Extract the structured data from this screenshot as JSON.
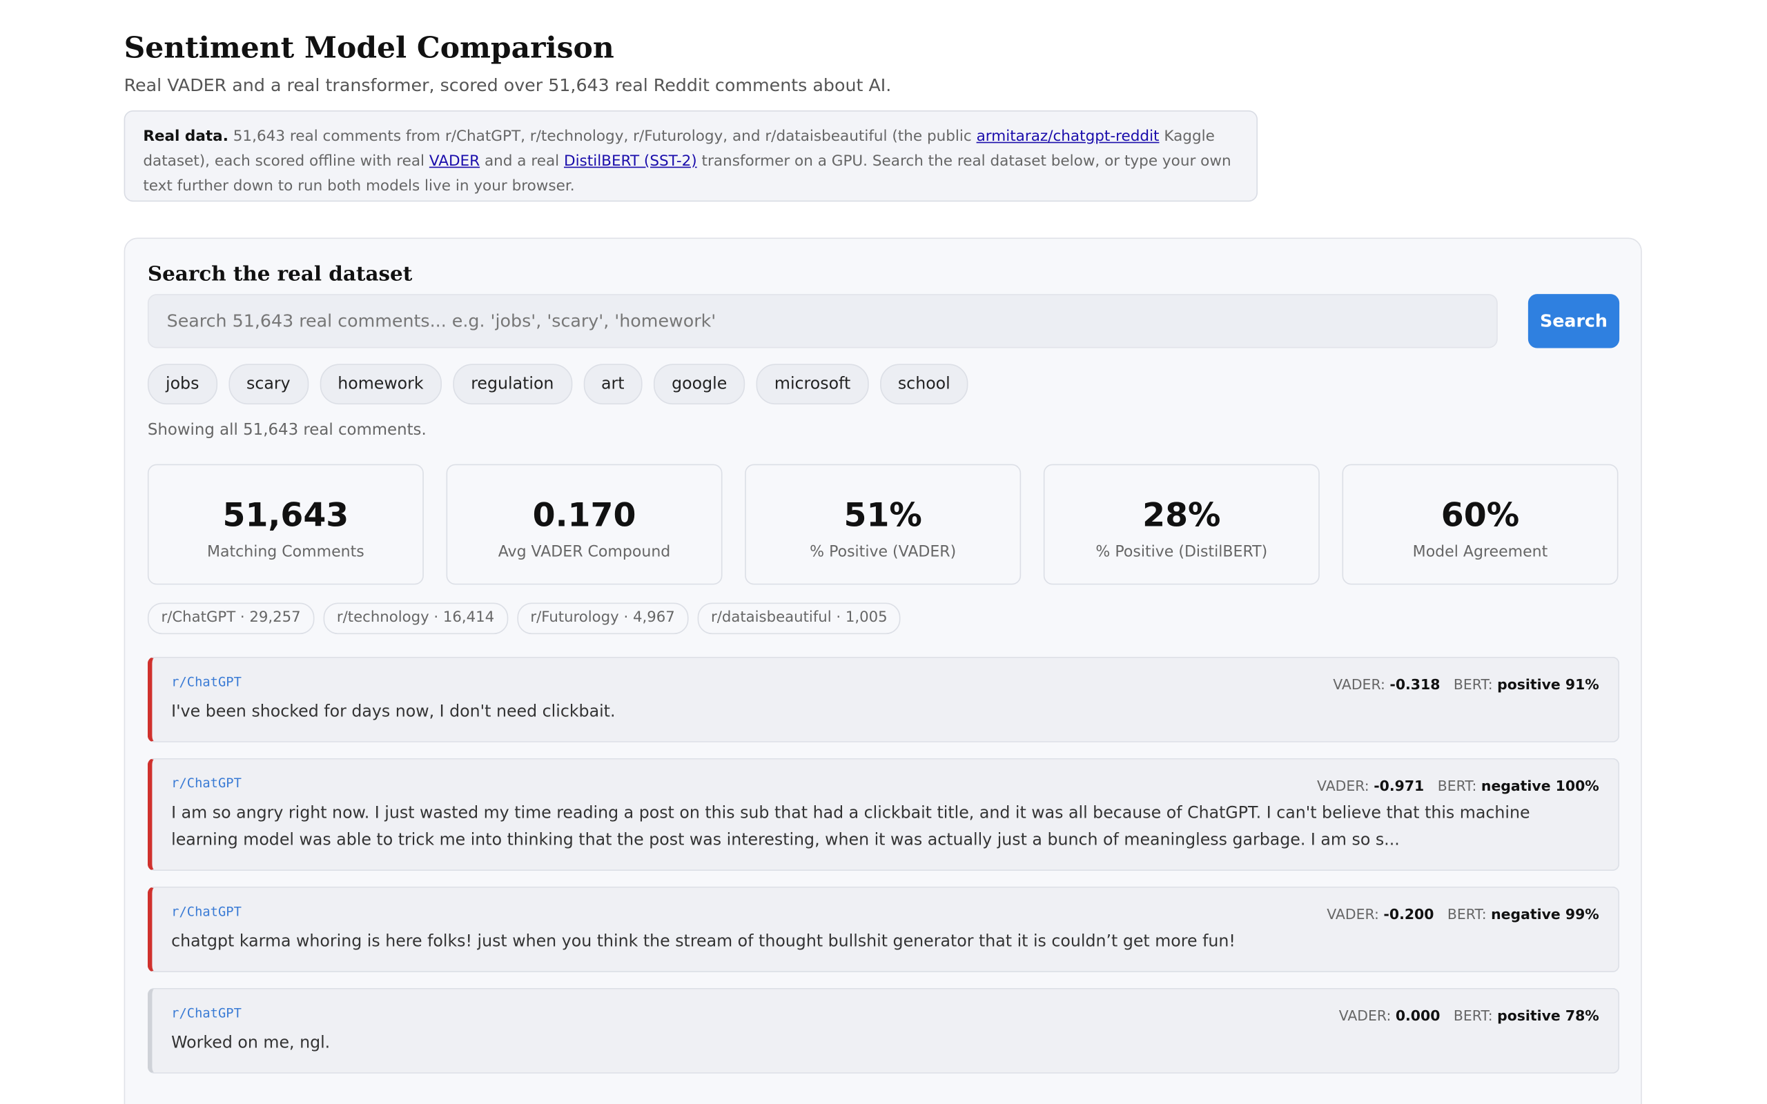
{
  "header": {
    "title": "Sentiment Model Comparison",
    "subtitle": "Real VADER and a real transformer, scored over 51,643 real Reddit comments about AI."
  },
  "notice": {
    "lead": "Real data.",
    "text1": " 51,643 real comments from r/ChatGPT, r/technology, r/Futurology, and r/dataisbeautiful (the public ",
    "link1": "armitaraz/chatgpt-reddit",
    "text2": " Kaggle dataset), each scored offline with real ",
    "link2": "VADER",
    "text3": " and a real ",
    "link3": "DistilBERT (SST-2)",
    "text4": " transformer on a GPU. Search the real dataset below, or type your own text further down to run both models live in your browser."
  },
  "search": {
    "title": "Search the real dataset",
    "placeholder": "Search 51,643 real comments... e.g. 'jobs', 'scary', 'homework'",
    "button": "Search",
    "chips": [
      "jobs",
      "scary",
      "homework",
      "regulation",
      "art",
      "google",
      "microsoft",
      "school"
    ],
    "status": "Showing all 51,643 real comments."
  },
  "stats": [
    {
      "value": "51,643",
      "label": "Matching Comments"
    },
    {
      "value": "0.170",
      "label": "Avg VADER Compound"
    },
    {
      "value": "51%",
      "label": "% Positive (VADER)"
    },
    {
      "value": "28%",
      "label": "% Positive (DistilBERT)"
    },
    {
      "value": "60%",
      "label": "Model Agreement"
    }
  ],
  "subreddits": [
    "r/ChatGPT · 29,257",
    "r/technology · 16,414",
    "r/Futurology · 4,967",
    "r/dataisbeautiful · 1,005"
  ],
  "comments": [
    {
      "subreddit": "r/ChatGPT",
      "vader_label": "VADER:",
      "vader": "-0.318",
      "bert_label": "BERT:",
      "bert": "positive 91%",
      "text": "I've been shocked for days now, I don't need clickbait."
    },
    {
      "subreddit": "r/ChatGPT",
      "vader_label": "VADER:",
      "vader": "-0.971",
      "bert_label": "BERT:",
      "bert": "negative 100%",
      "text": "I am so angry right now. I just wasted my time reading a post on this sub that had a clickbait title, and it was all because of ChatGPT. I can't believe that this machine learning model was able to trick me into thinking that the post was interesting, when it was actually just a bunch of meaningless garbage. I am so s..."
    },
    {
      "subreddit": "r/ChatGPT",
      "vader_label": "VADER:",
      "vader": "-0.200",
      "bert_label": "BERT:",
      "bert": "negative 99%",
      "text": "chatgpt karma whoring is here folks! just when you think the stream of thought bullshit generator that it is couldn’t get more fun!"
    },
    {
      "subreddit": "r/ChatGPT",
      "vader_label": "VADER:",
      "vader": "0.000",
      "bert_label": "BERT:",
      "bert": "positive 78%",
      "text": "Worked on me, ngl."
    }
  ]
}
